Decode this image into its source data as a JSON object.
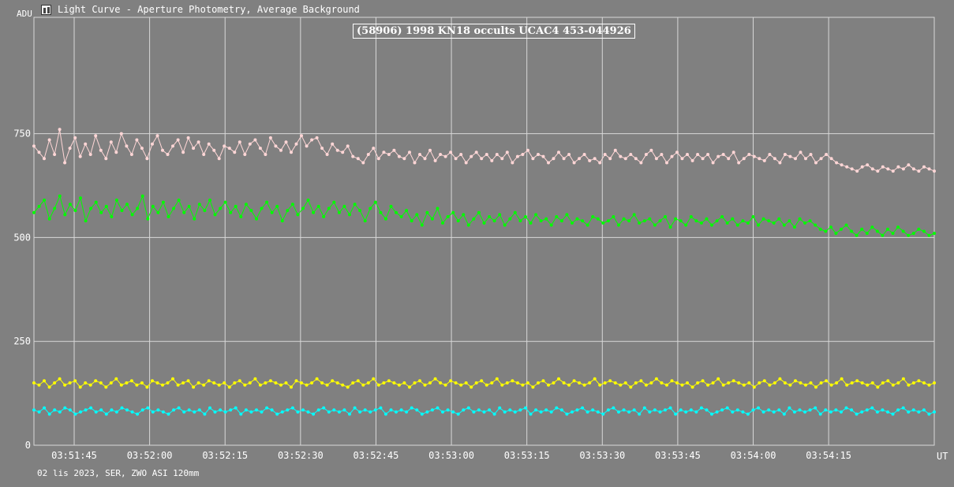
{
  "window": {
    "title": "Light Curve - Aperture Photometry, Average Background"
  },
  "footer": {
    "info": "02 lis 2023, SER, ZWO ASI 120mm"
  },
  "chart_data": {
    "type": "line",
    "title": "(58906) 1998 KN18 occults UCAC4 453-044926",
    "ylabel": "ADU",
    "xlabel": "UT",
    "ylim": [
      0,
      1030
    ],
    "xlim": [
      "03:51:37",
      "03:54:36"
    ],
    "yticks": [
      "0",
      "250",
      "500",
      "750"
    ],
    "xticks": [
      "03:51:45",
      "03:52:00",
      "03:52:15",
      "03:52:30",
      "03:52:45",
      "03:53:00",
      "03:53:15",
      "03:53:30",
      "03:53:45",
      "03:54:00",
      "03:54:15"
    ],
    "grid": true,
    "legend": "none",
    "series": [
      {
        "color": "#ffd6d6",
        "values": [
          720,
          705,
          690,
          735,
          700,
          760,
          680,
          715,
          740,
          695,
          725,
          700,
          745,
          710,
          690,
          730,
          705,
          750,
          720,
          700,
          735,
          715,
          690,
          725,
          745,
          710,
          700,
          720,
          735,
          705,
          740,
          715,
          730,
          700,
          725,
          710,
          690,
          720,
          715,
          705,
          730,
          700,
          725,
          735,
          715,
          700,
          740,
          720,
          710,
          730,
          705,
          725,
          745,
          720,
          735,
          740,
          715,
          700,
          725,
          710,
          705,
          720,
          695,
          690,
          680,
          700,
          715,
          690,
          705,
          700,
          710,
          695,
          690,
          705,
          680,
          700,
          690,
          710,
          685,
          700,
          695,
          705,
          690,
          700,
          680,
          695,
          705,
          690,
          700,
          685,
          700,
          690,
          705,
          680,
          695,
          700,
          710,
          690,
          700,
          695,
          680,
          690,
          705,
          690,
          700,
          680,
          690,
          700,
          685,
          690,
          680,
          700,
          690,
          710,
          695,
          690,
          700,
          690,
          680,
          700,
          710,
          690,
          700,
          680,
          695,
          705,
          690,
          700,
          685,
          700,
          690,
          700,
          680,
          695,
          700,
          690,
          705,
          680,
          690,
          700,
          695,
          690,
          685,
          700,
          690,
          680,
          700,
          695,
          690,
          705,
          690,
          700,
          680,
          690,
          700,
          690,
          680,
          675,
          670,
          665,
          660,
          670,
          675,
          665,
          660,
          670,
          665,
          660,
          670,
          665,
          675,
          665,
          660,
          670,
          665,
          660
        ]
      },
      {
        "color": "#00ff00",
        "values": [
          560,
          575,
          590,
          545,
          570,
          600,
          555,
          580,
          565,
          595,
          540,
          570,
          585,
          560,
          575,
          550,
          590,
          565,
          580,
          555,
          570,
          600,
          545,
          575,
          560,
          585,
          550,
          570,
          590,
          560,
          575,
          545,
          580,
          565,
          590,
          555,
          570,
          585,
          560,
          575,
          550,
          580,
          565,
          545,
          570,
          585,
          560,
          575,
          540,
          565,
          580,
          555,
          570,
          590,
          560,
          575,
          550,
          570,
          585,
          560,
          575,
          555,
          580,
          565,
          540,
          570,
          585,
          560,
          545,
          575,
          560,
          550,
          565,
          540,
          555,
          530,
          560,
          545,
          570,
          535,
          550,
          560,
          540,
          555,
          530,
          545,
          560,
          535,
          550,
          540,
          555,
          530,
          545,
          560,
          540,
          550,
          535,
          555,
          540,
          545,
          530,
          550,
          540,
          555,
          535,
          545,
          540,
          530,
          550,
          545,
          535,
          540,
          550,
          530,
          545,
          540,
          555,
          535,
          540,
          545,
          530,
          540,
          550,
          525,
          545,
          540,
          530,
          550,
          540,
          535,
          545,
          530,
          540,
          550,
          535,
          545,
          530,
          540,
          535,
          550,
          530,
          545,
          540,
          535,
          545,
          530,
          540,
          525,
          545,
          535,
          540,
          530,
          520,
          515,
          525,
          510,
          520,
          530,
          515,
          505,
          520,
          510,
          525,
          515,
          505,
          520,
          510,
          525,
          515,
          505,
          510,
          520,
          515,
          505,
          510
        ]
      },
      {
        "color": "#ffff00",
        "values": [
          150,
          145,
          155,
          140,
          150,
          160,
          145,
          150,
          155,
          140,
          150,
          145,
          155,
          150,
          140,
          150,
          160,
          145,
          150,
          155,
          145,
          150,
          140,
          155,
          150,
          145,
          150,
          160,
          145,
          150,
          155,
          140,
          150,
          145,
          155,
          150,
          145,
          150,
          140,
          150,
          155,
          145,
          150,
          160,
          145,
          150,
          155,
          150,
          145,
          150,
          140,
          155,
          150,
          145,
          150,
          160,
          150,
          145,
          155,
          150,
          145,
          140,
          150,
          155,
          145,
          150,
          160,
          145,
          150,
          155,
          150,
          145,
          150,
          140,
          150,
          155,
          145,
          150,
          160,
          150,
          145,
          155,
          150,
          145,
          150,
          140,
          150,
          155,
          145,
          150,
          160,
          145,
          150,
          155,
          150,
          145,
          150,
          140,
          150,
          155,
          145,
          150,
          160,
          150,
          145,
          155,
          150,
          145,
          150,
          160,
          145,
          150,
          155,
          150,
          145,
          150,
          140,
          150,
          155,
          145,
          150,
          160,
          150,
          145,
          155,
          150,
          145,
          150,
          140,
          150,
          155,
          145,
          150,
          160,
          145,
          150,
          155,
          150,
          145,
          150,
          140,
          150,
          155,
          145,
          150,
          160,
          150,
          145,
          155,
          150,
          145,
          150,
          140,
          150,
          155,
          145,
          150,
          160,
          145,
          150,
          155,
          150,
          145,
          150,
          140,
          150,
          155,
          145,
          150,
          160,
          145,
          150,
          155,
          150,
          145,
          150
        ]
      },
      {
        "color": "#00ffff",
        "values": [
          85,
          80,
          90,
          75,
          85,
          80,
          90,
          85,
          75,
          80,
          85,
          90,
          80,
          85,
          75,
          85,
          80,
          90,
          85,
          80,
          75,
          85,
          90,
          80,
          85,
          80,
          75,
          85,
          90,
          80,
          85,
          80,
          85,
          75,
          90,
          80,
          85,
          80,
          85,
          90,
          75,
          85,
          80,
          85,
          80,
          90,
          85,
          75,
          80,
          85,
          90,
          80,
          85,
          80,
          75,
          85,
          90,
          80,
          85,
          80,
          85,
          75,
          90,
          80,
          85,
          80,
          85,
          90,
          75,
          85,
          80,
          85,
          80,
          90,
          85,
          75,
          80,
          85,
          90,
          80,
          85,
          80,
          75,
          85,
          90,
          80,
          85,
          80,
          85,
          75,
          90,
          80,
          85,
          80,
          85,
          90,
          75,
          85,
          80,
          85,
          80,
          90,
          85,
          75,
          80,
          85,
          90,
          80,
          85,
          80,
          75,
          85,
          90,
          80,
          85,
          80,
          85,
          75,
          90,
          80,
          85,
          80,
          85,
          90,
          75,
          85,
          80,
          85,
          80,
          90,
          85,
          75,
          80,
          85,
          90,
          80,
          85,
          80,
          75,
          85,
          90,
          80,
          85,
          80,
          85,
          75,
          90,
          80,
          85,
          80,
          85,
          90,
          75,
          85,
          80,
          85,
          80,
          90,
          85,
          75,
          80,
          85,
          90,
          80,
          85,
          80,
          75,
          85,
          90,
          80,
          85,
          80,
          85,
          75,
          80
        ]
      }
    ]
  }
}
